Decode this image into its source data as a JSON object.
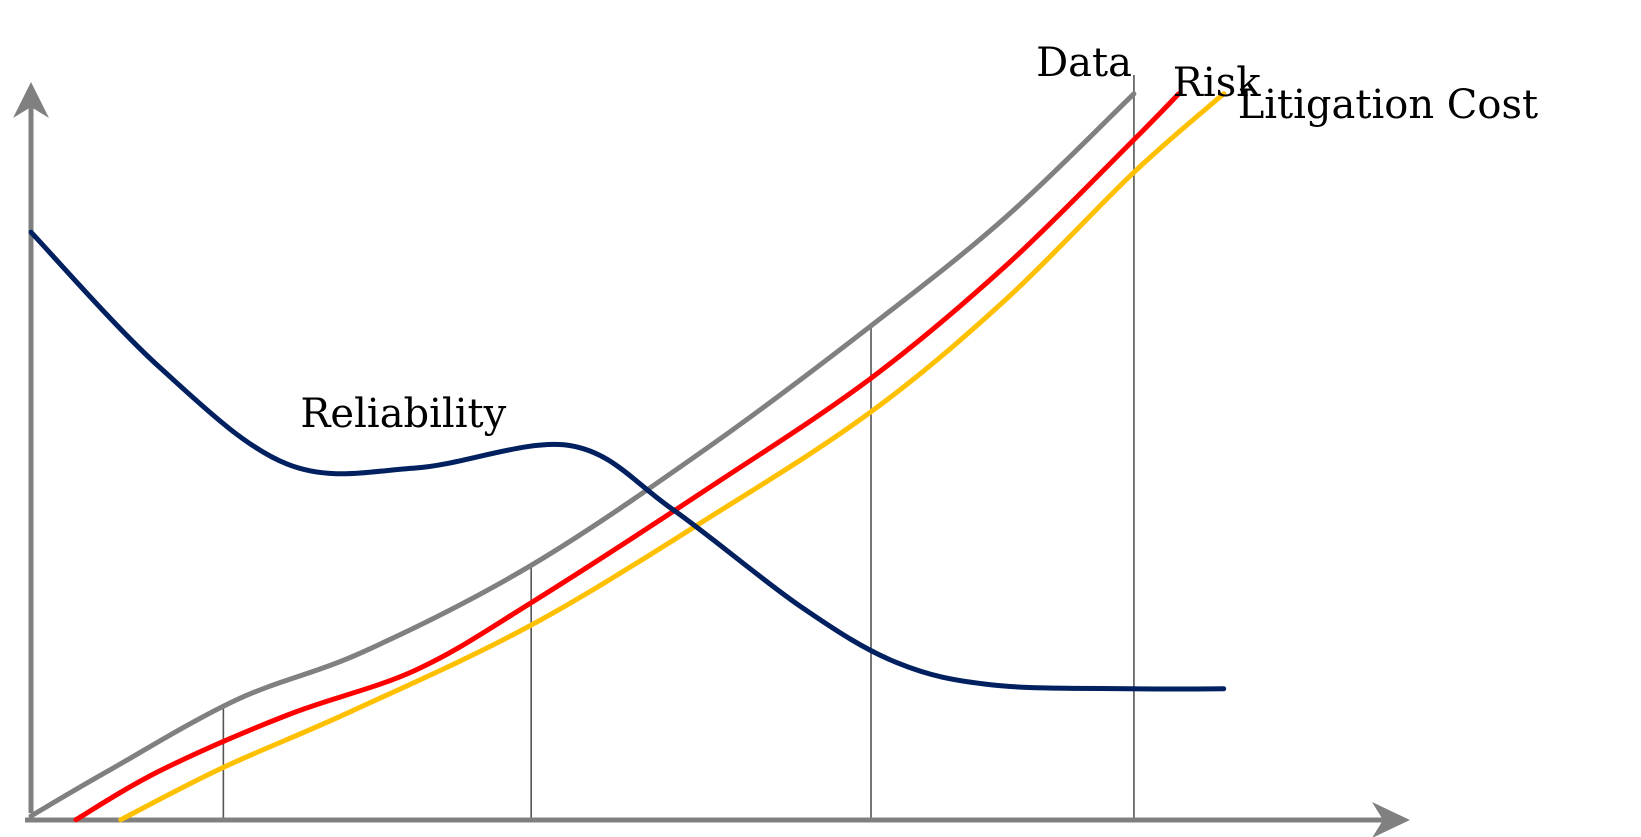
{
  "chart_data": {
    "type": "line",
    "title": "",
    "xlabel": "",
    "ylabel": "",
    "xlim": [
      0,
      10
    ],
    "ylim": [
      0,
      10
    ],
    "grid": false,
    "legend": "none (series labeled directly at curve ends)",
    "reference_lines_x": [
      1.5,
      3.9,
      6.55,
      8.6
    ],
    "series": [
      {
        "name": "Data",
        "color": "#808080",
        "points": [
          [
            0,
            0
          ],
          [
            0.6,
            0.6
          ],
          [
            1.6,
            1.55
          ],
          [
            2.6,
            2.2
          ],
          [
            3.9,
            3.35
          ],
          [
            5.3,
            4.95
          ],
          [
            6.55,
            6.55
          ],
          [
            7.6,
            8.0
          ],
          [
            8.6,
            9.65
          ]
        ]
      },
      {
        "name": "Risk",
        "color": "#ff0000",
        "points": [
          [
            0.35,
            -0.05
          ],
          [
            1.0,
            0.6
          ],
          [
            2.0,
            1.35
          ],
          [
            3.0,
            1.95
          ],
          [
            3.9,
            2.85
          ],
          [
            5.3,
            4.4
          ],
          [
            6.55,
            5.85
          ],
          [
            7.6,
            7.35
          ],
          [
            8.55,
            8.95
          ],
          [
            8.95,
            9.65
          ]
        ]
      },
      {
        "name": "Litigation Cost",
        "color": "#ffc000",
        "points": [
          [
            0.7,
            -0.05
          ],
          [
            1.5,
            0.65
          ],
          [
            2.5,
            1.4
          ],
          [
            3.9,
            2.55
          ],
          [
            5.3,
            4.0
          ],
          [
            6.55,
            5.4
          ],
          [
            7.6,
            6.9
          ],
          [
            8.6,
            8.6
          ],
          [
            9.3,
            9.65
          ]
        ]
      },
      {
        "name": "Reliability",
        "color": "#002060",
        "points": [
          [
            0,
            7.8
          ],
          [
            1.0,
            6.0
          ],
          [
            2.0,
            4.7
          ],
          [
            3.0,
            4.65
          ],
          [
            4.2,
            4.95
          ],
          [
            5.0,
            4.1
          ],
          [
            6.0,
            2.8
          ],
          [
            6.75,
            2.05
          ],
          [
            7.5,
            1.75
          ],
          [
            8.6,
            1.7
          ],
          [
            9.3,
            1.7
          ]
        ]
      }
    ]
  }
}
